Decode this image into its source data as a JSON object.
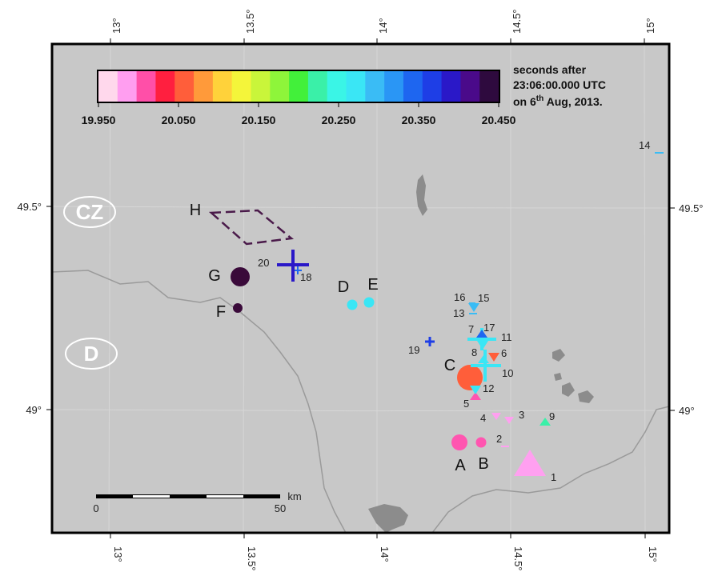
{
  "map": {
    "lon_ticks": [
      "13°",
      "13.5°",
      "14°",
      "14.5°",
      "15°"
    ],
    "lat_ticks": [
      "49.5°",
      "49°"
    ],
    "scale_bar": {
      "start_label": "0",
      "end_label": "50",
      "unit": "km"
    },
    "country_labels": [
      "CZ",
      "D"
    ],
    "colors": {
      "land": "#c8c8c8",
      "border": "#9e9e9e",
      "water": "#8c8c8c",
      "frame": "#000000"
    }
  },
  "colorbar": {
    "title_line1": "seconds after",
    "title_line2": "23:06:00.000 UTC",
    "title_line3_prefix": "on 6",
    "title_line3_sup": "th",
    "title_line3_suffix": " Aug, 2013.",
    "tick_labels": [
      "19.950",
      "20.050",
      "20.150",
      "20.250",
      "20.350",
      "20.450"
    ],
    "colors": [
      "#ffd8ec",
      "#ff9ef0",
      "#ff4fa8",
      "#ff1f3f",
      "#ff5e3a",
      "#ff9a3a",
      "#ffd23a",
      "#f4f53a",
      "#c9f53a",
      "#8ef53a",
      "#42f03a",
      "#3af0a8",
      "#3af5e6",
      "#3ae6f5",
      "#3abcf5",
      "#2a96f5",
      "#1e66f0",
      "#1e3ee6",
      "#2a18c8",
      "#4a0a8a",
      "#2e0a3e"
    ]
  },
  "events": [
    {
      "id": "A",
      "label": "A",
      "shape": "circle",
      "color": "#ff55b0"
    },
    {
      "id": "B",
      "label": "B",
      "shape": "circle",
      "color": "#ff55b0"
    },
    {
      "id": "C",
      "label": "C",
      "shape": "circle",
      "color": "#ff5e3a"
    },
    {
      "id": "D",
      "label": "D",
      "shape": "circle",
      "color": "#3ae6f5"
    },
    {
      "id": "E",
      "label": "E",
      "shape": "circle",
      "color": "#3ae6f5"
    },
    {
      "id": "F",
      "label": "F",
      "shape": "circle",
      "color": "#3a0a3a"
    },
    {
      "id": "G",
      "label": "G",
      "shape": "circle",
      "color": "#3a0a3a"
    },
    {
      "id": "H",
      "label": "H",
      "shape": "diamond-dashed",
      "color": "#4a1a4a"
    }
  ],
  "stations": [
    {
      "id": "1",
      "label": "1",
      "shape": "triangle-up",
      "color": "#ffa0f0"
    },
    {
      "id": "2",
      "label": "2",
      "shape": "dash",
      "color": "#ffa0f0"
    },
    {
      "id": "3",
      "label": "3",
      "shape": "triangle-down",
      "color": "#ffa0f0"
    },
    {
      "id": "4",
      "label": "4",
      "shape": "triangle-down",
      "color": "#ffa0f0"
    },
    {
      "id": "5",
      "label": "5",
      "shape": "triangle-up",
      "color": "#ff55b0"
    },
    {
      "id": "6",
      "label": "6",
      "shape": "triangle-down",
      "color": "#ff5e3a"
    },
    {
      "id": "7",
      "label": "7",
      "shape": "cross",
      "color": "#3ae6f5"
    },
    {
      "id": "8",
      "label": "8",
      "shape": "triangle-up",
      "color": "#3ae6f5"
    },
    {
      "id": "9",
      "label": "9",
      "shape": "triangle-up",
      "color": "#3af0a8"
    },
    {
      "id": "10",
      "label": "10",
      "shape": "cross",
      "color": "#3ae6f5"
    },
    {
      "id": "11",
      "label": "11",
      "shape": "triangle-down",
      "color": "#3ae6f5"
    },
    {
      "id": "12",
      "label": "12",
      "shape": "triangle-down",
      "color": "#3ae6f5"
    },
    {
      "id": "13",
      "label": "13",
      "shape": "dash",
      "color": "#3abcf5"
    },
    {
      "id": "14",
      "label": "14",
      "shape": "dash",
      "color": "#3abcf5"
    },
    {
      "id": "15",
      "label": "15",
      "shape": "triangle-down",
      "color": "#3abcf5"
    },
    {
      "id": "16",
      "label": "16",
      "shape": "dash",
      "color": "#3abcf5"
    },
    {
      "id": "17",
      "label": "17",
      "shape": "triangle-up",
      "color": "#1e66f0"
    },
    {
      "id": "18",
      "label": "18",
      "shape": "cross-small",
      "color": "#1e66f0"
    },
    {
      "id": "19",
      "label": "19",
      "shape": "cross-small",
      "color": "#1e3ee6"
    },
    {
      "id": "20",
      "label": "20",
      "shape": "cross",
      "color": "#2a18c8"
    }
  ]
}
